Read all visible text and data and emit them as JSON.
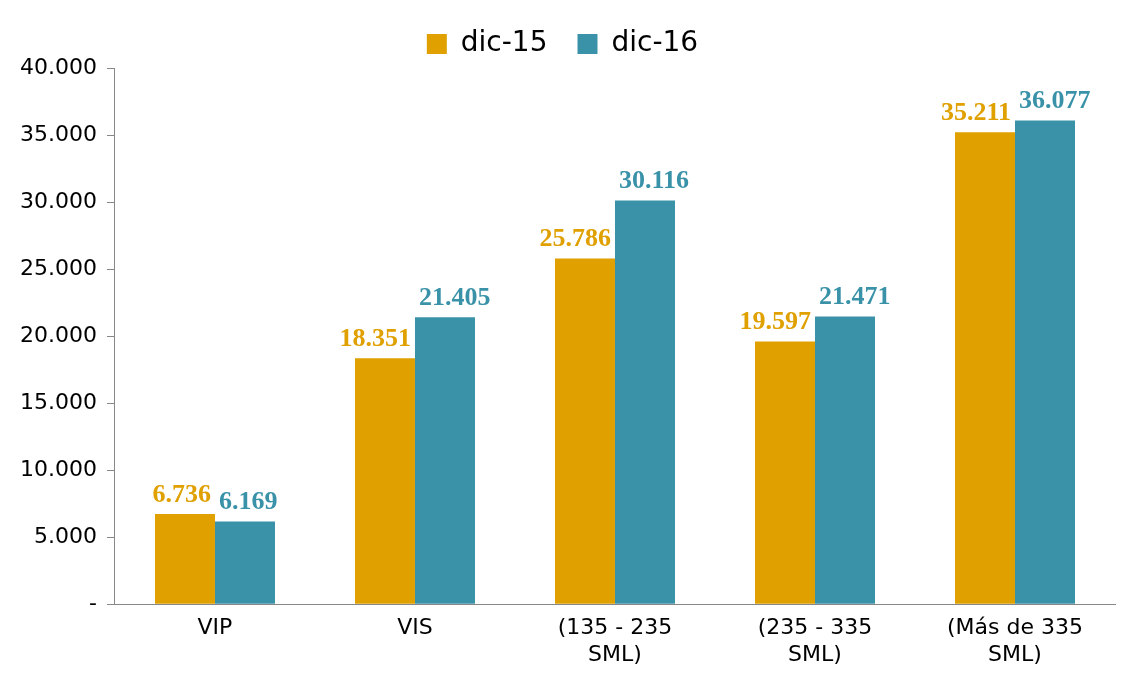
{
  "chart_data": {
    "type": "bar",
    "categories": [
      "VIP",
      "VIS",
      "(135 - 235 SML)",
      "(235 - 335 SML)",
      "(Más de 335 SML)"
    ],
    "series": [
      {
        "name": "dic-15",
        "color": "#dfa000",
        "values": [
          6736,
          18351,
          25786,
          19597,
          35211
        ],
        "value_labels": [
          "6.736",
          "18.351",
          "25.786",
          "19.597",
          "35.211"
        ]
      },
      {
        "name": "dic-16",
        "color": "#3a92a8",
        "values": [
          6169,
          21405,
          30116,
          21471,
          36077
        ],
        "value_labels": [
          "6.169",
          "21.405",
          "30.116",
          "21.471",
          "36.077"
        ]
      }
    ],
    "ylim": [
      0,
      40000
    ],
    "yticks": [
      {
        "value": 0,
        "label": "-"
      },
      {
        "value": 5000,
        "label": "5.000"
      },
      {
        "value": 10000,
        "label": "10.000"
      },
      {
        "value": 15000,
        "label": "15.000"
      },
      {
        "value": 20000,
        "label": "20.000"
      },
      {
        "value": 25000,
        "label": "25.000"
      },
      {
        "value": 30000,
        "label": "30.000"
      },
      {
        "value": 35000,
        "label": "35.000"
      },
      {
        "value": 40000,
        "label": "40.000"
      }
    ],
    "grid": false,
    "legend": "top"
  }
}
